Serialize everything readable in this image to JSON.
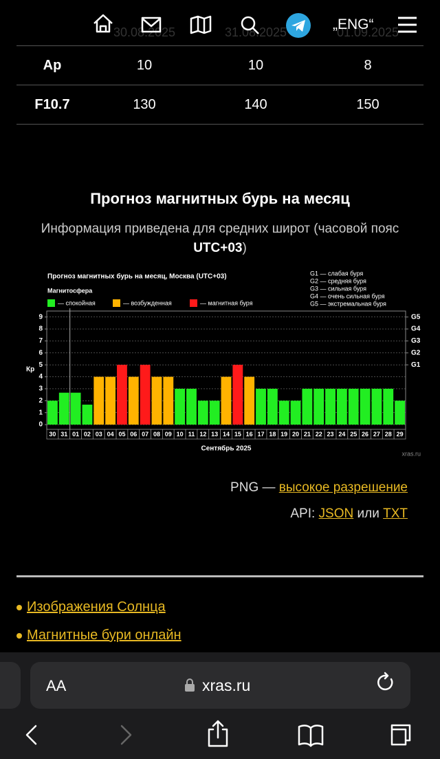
{
  "nav": {
    "lang": "„ENG“"
  },
  "table": {
    "header": [
      "30.08.2025",
      "31.08.2025",
      "01.09.2025"
    ],
    "rows": [
      [
        "Ap",
        10,
        10,
        8
      ],
      [
        "F10.7",
        130,
        140,
        150
      ]
    ]
  },
  "section": {
    "title": "Прогноз магнитных бурь на месяц",
    "subtitle": "Информация приведена для средних широт (часовой пояс",
    "timezone": "UTC+03",
    "subtitle_end": ")"
  },
  "chart_data": {
    "type": "bar",
    "title": "Прогноз магнитных бурь на месяц, Москва (UTC+03)",
    "subtitle": "Магнитосфера",
    "x_label": "Сентябрь 2025",
    "y_label": "Кр",
    "source": "xras.ru",
    "categories": [
      "30",
      "31",
      "01",
      "02",
      "03",
      "04",
      "05",
      "06",
      "07",
      "08",
      "09",
      "10",
      "11",
      "12",
      "13",
      "14",
      "15",
      "16",
      "17",
      "18",
      "19",
      "20",
      "21",
      "22",
      "23",
      "24",
      "25",
      "26",
      "27",
      "28",
      "29"
    ],
    "values": [
      2,
      2.67,
      2.67,
      1.67,
      4,
      4,
      5,
      4,
      5,
      4,
      4,
      3,
      3,
      2,
      2,
      4,
      5,
      4,
      3,
      3,
      2,
      2,
      3,
      3,
      3,
      3,
      3,
      3,
      3,
      3,
      2
    ],
    "bar_colors": [
      "#22ee22",
      "#22ee22",
      "#22ee22",
      "#22ee22",
      "#ffb300",
      "#ffb300",
      "#ff1a1a",
      "#ffb300",
      "#ff1a1a",
      "#ffb300",
      "#ffb300",
      "#22ee22",
      "#22ee22",
      "#22ee22",
      "#22ee22",
      "#ffb300",
      "#ff1a1a",
      "#ffb300",
      "#22ee22",
      "#22ee22",
      "#22ee22",
      "#22ee22",
      "#22ee22",
      "#22ee22",
      "#22ee22",
      "#22ee22",
      "#22ee22",
      "#22ee22",
      "#22ee22",
      "#22ee22",
      "#22ee22"
    ],
    "legend": [
      {
        "name": "— спокойная",
        "color": "#22ee22"
      },
      {
        "name": "— возбужденная",
        "color": "#ffb300"
      },
      {
        "name": "— магнитная буря",
        "color": "#ff1a1a"
      }
    ],
    "scale_legend": [
      "G1 — слабая буря",
      "G2 — средняя буря",
      "G3 — сильная буря",
      "G4 — очень сильная буря",
      "G5 — экстремальная буря"
    ],
    "ylim": [
      -0.4,
      9.5
    ],
    "yticks": [
      0,
      1,
      2,
      3,
      4,
      5,
      6,
      7,
      8,
      9
    ],
    "y2lim": [
      -0.4,
      9.5
    ],
    "y2ticks": [
      {
        "value": 5,
        "label": "G1"
      },
      {
        "value": 6,
        "label": "G2"
      },
      {
        "value": 7,
        "label": "G3"
      },
      {
        "value": 8,
        "label": "G4"
      },
      {
        "value": 9,
        "label": "G5"
      }
    ],
    "grid": true
  },
  "downloads": {
    "png": "PNG —",
    "png_link": "высокое разрешение",
    "api": "API:",
    "json": "JSON",
    "or": "или",
    "txt": "TXT"
  },
  "links": [
    "Изображения Солнца",
    "Магнитные бури онлайн"
  ],
  "browser": {
    "text_size": "AA",
    "url": "xras.ru"
  }
}
